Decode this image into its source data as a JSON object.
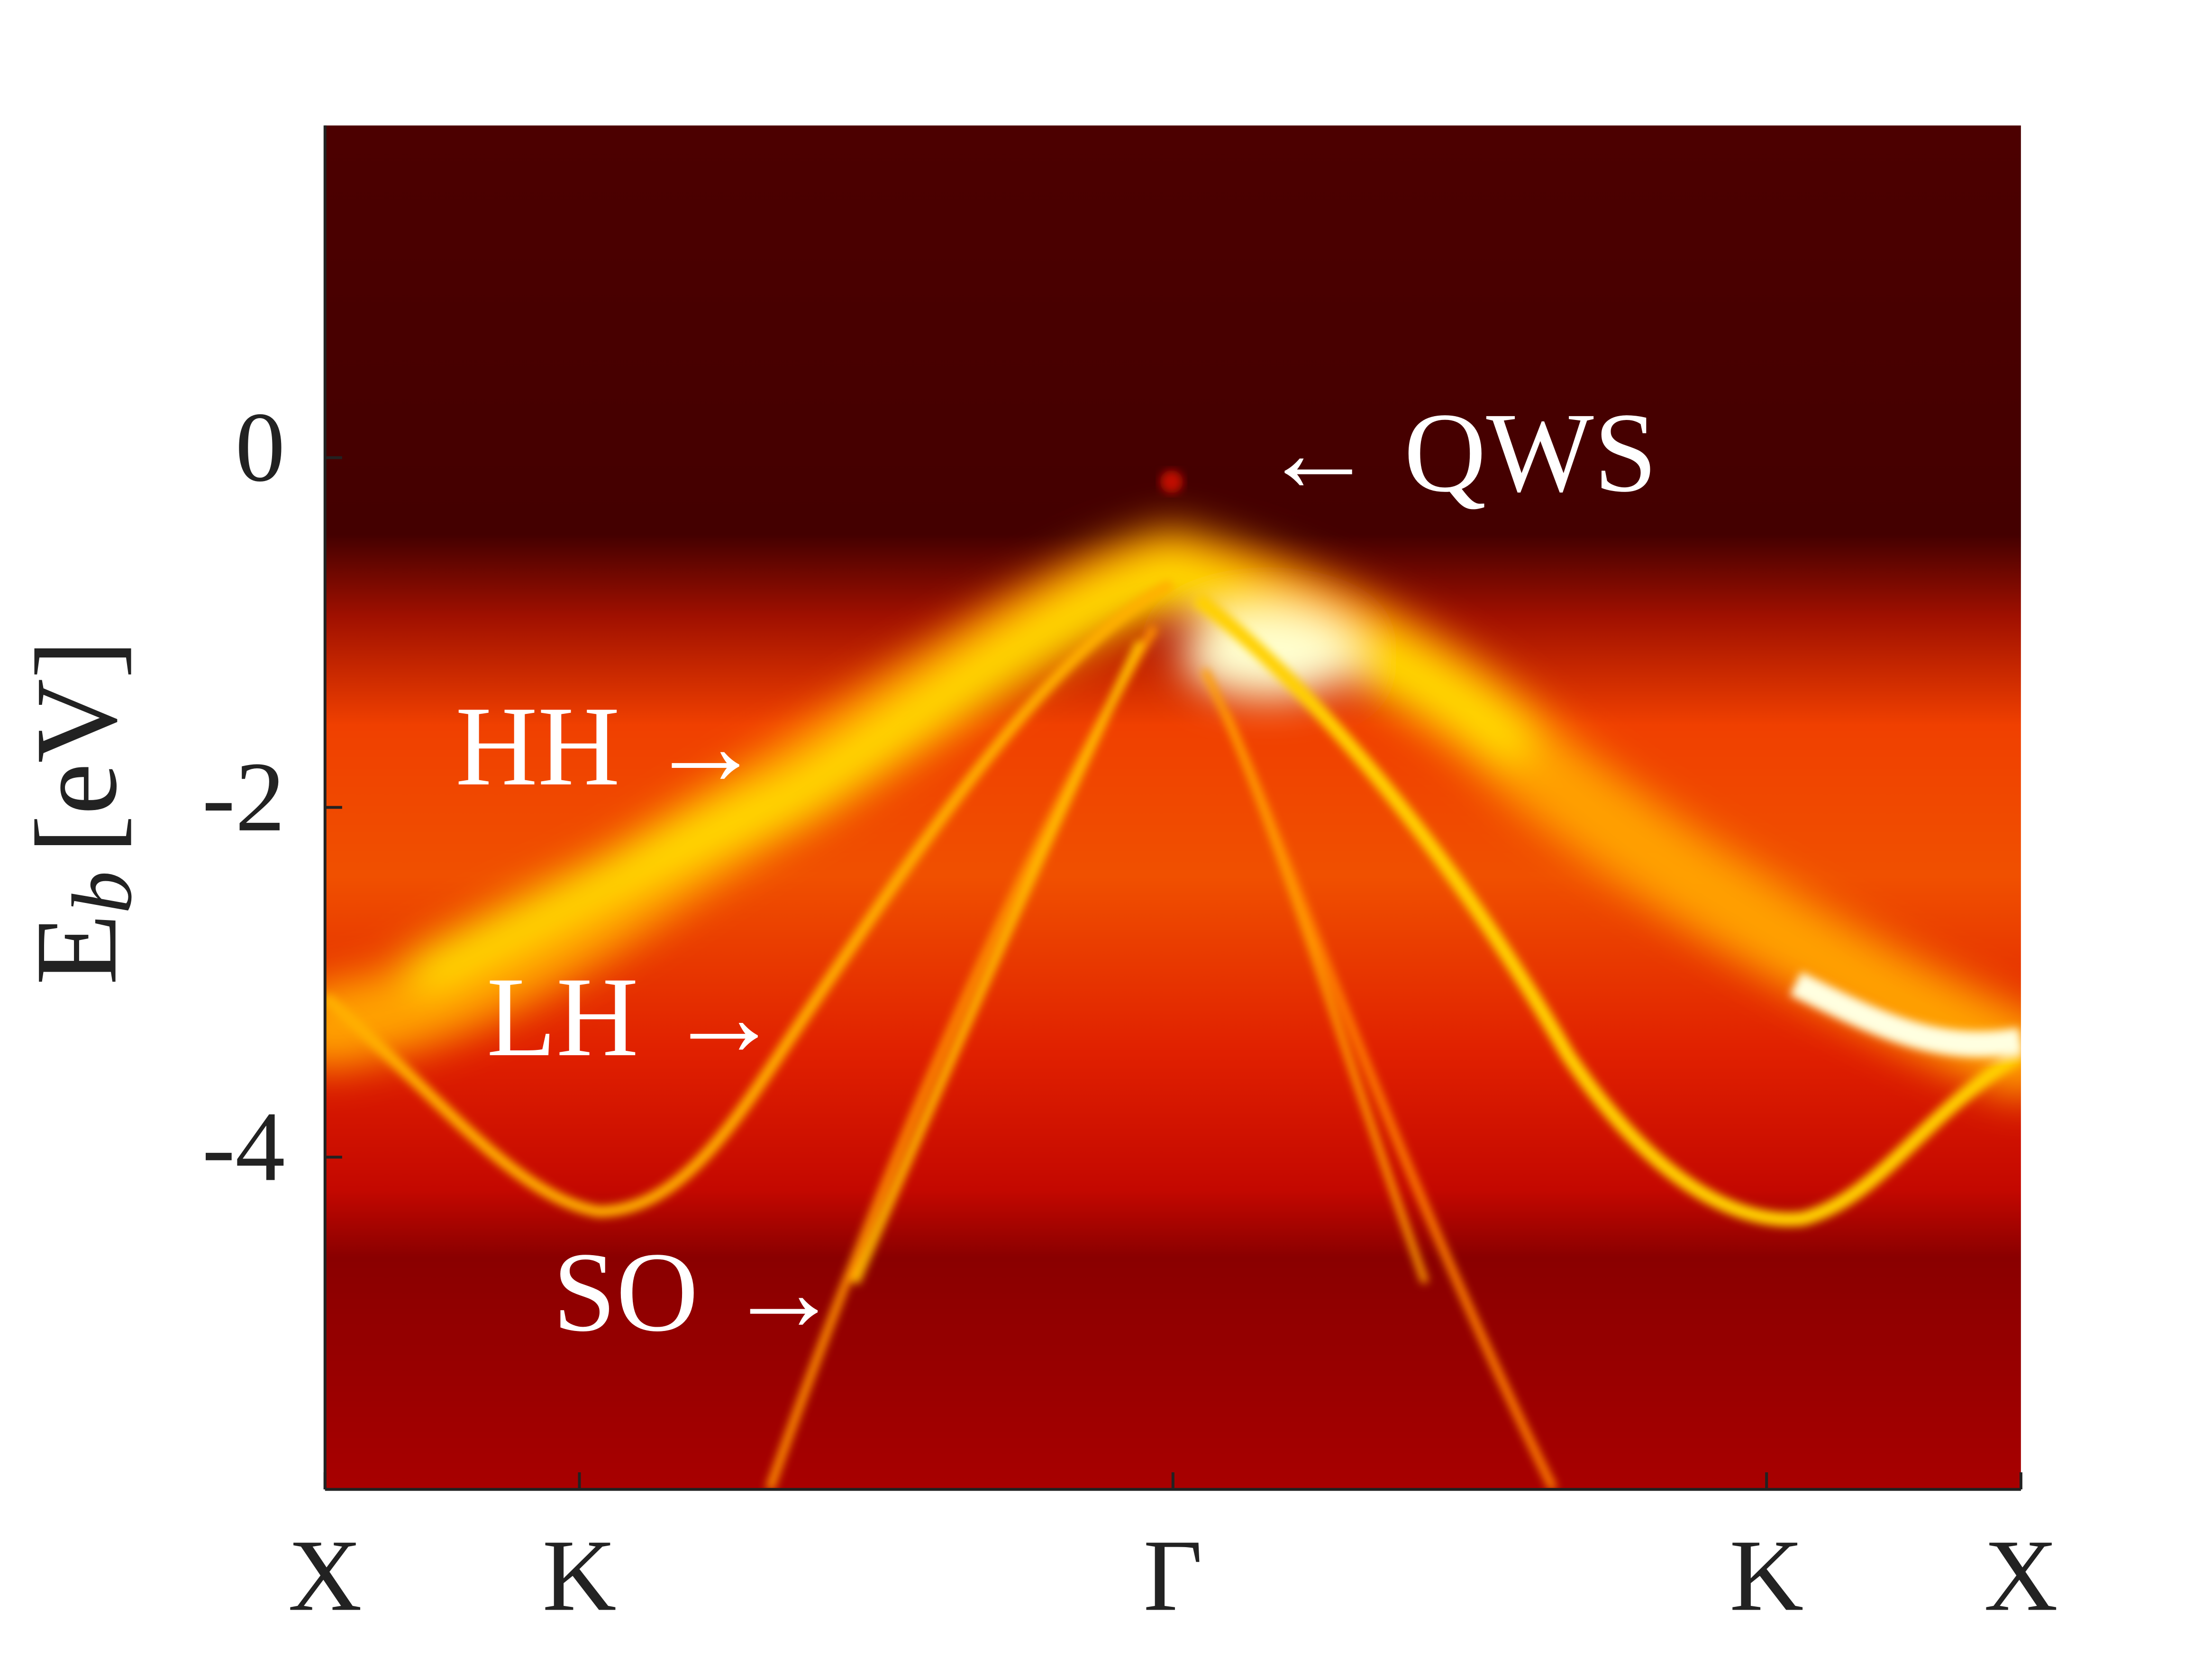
{
  "chart_data": {
    "type": "heatmap",
    "ylabel": {
      "main": "E",
      "sub": "b",
      "unit": "[eV]"
    },
    "ylim": [
      1.9,
      -5.9
    ],
    "yticks": [
      0,
      -2,
      -4
    ],
    "xlim": [
      0,
      1
    ],
    "xticks": [
      {
        "value": 0,
        "label": "X"
      },
      {
        "value": 0.15,
        "label": "K"
      },
      {
        "value": 0.5,
        "label": "Γ"
      },
      {
        "value": 0.85,
        "label": "K"
      },
      {
        "value": 1,
        "label": "X"
      }
    ],
    "annotations": [
      "← QWS",
      "HH →",
      "LH →",
      "SO →"
    ]
  }
}
